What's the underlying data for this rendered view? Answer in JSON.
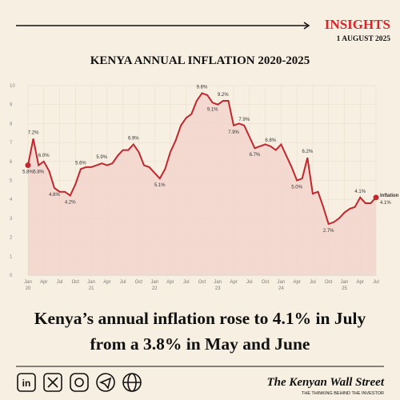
{
  "header": {
    "section": "INSIGHTS",
    "date": "1 AUGUST 2025"
  },
  "chart_data": {
    "type": "line",
    "title": "KENYA ANNUAL INFLATION 2020-2025",
    "x": [
      "Jan 20",
      null,
      null,
      "Apr",
      null,
      null,
      "Jul",
      null,
      null,
      "Oct",
      null,
      null,
      "Jan 21",
      null,
      null,
      "Apr",
      null,
      null,
      "Jul",
      null,
      null,
      "Oct",
      null,
      null,
      "Jan 22",
      null,
      null,
      "Apr",
      null,
      null,
      "Jul",
      null,
      null,
      "Oct",
      null,
      null,
      "Jan 23",
      null,
      null,
      "Apr",
      null,
      null,
      "Jul",
      null,
      null,
      "Oct",
      null,
      null,
      "Jan 24",
      null,
      null,
      "Apr",
      null,
      null,
      "Jul",
      null,
      null,
      "Oct",
      null,
      null,
      "Jan 25",
      null,
      null,
      "Apr",
      null,
      null,
      "Jul"
    ],
    "series": [
      {
        "name": "Inflation",
        "color": "#c0282d",
        "values": [
          5.8,
          7.2,
          5.8,
          6.0,
          5.5,
          4.6,
          4.4,
          4.4,
          4.2,
          4.8,
          5.6,
          5.7,
          5.7,
          5.8,
          5.9,
          5.8,
          5.9,
          6.3,
          6.6,
          6.6,
          6.9,
          6.5,
          5.8,
          5.7,
          5.4,
          5.1,
          5.6,
          6.5,
          7.1,
          7.9,
          8.3,
          8.5,
          9.2,
          9.6,
          9.5,
          9.1,
          9.0,
          9.2,
          9.2,
          7.9,
          8.0,
          7.9,
          7.3,
          6.7,
          6.8,
          6.9,
          6.8,
          6.6,
          6.9,
          6.3,
          5.7,
          5.0,
          5.1,
          6.2,
          4.3,
          4.4,
          3.6,
          2.7,
          2.8,
          3.0,
          3.3,
          3.5,
          3.6,
          4.1,
          3.8,
          3.8,
          4.1
        ],
        "value_labels": [
          "5.8%",
          "7.2%",
          "5.8%",
          "6.0%",
          null,
          "4.6%",
          null,
          null,
          "4.2%",
          null,
          "5.6%",
          null,
          null,
          null,
          "5.9%",
          null,
          null,
          null,
          null,
          null,
          "6.9%",
          null,
          null,
          null,
          null,
          "5.1%",
          null,
          null,
          null,
          null,
          null,
          null,
          null,
          "9.6%",
          null,
          "9.1%",
          null,
          "9.2%",
          null,
          "7.9%",
          null,
          "7.9%",
          null,
          "6.7%",
          null,
          null,
          "6.8%",
          null,
          null,
          null,
          null,
          "5.0%",
          null,
          "6.2%",
          null,
          null,
          null,
          "2.7%",
          null,
          null,
          null,
          null,
          null,
          "4.1%",
          null,
          null,
          "4.1%"
        ]
      }
    ],
    "ylim": [
      0,
      10
    ],
    "yticks": [
      0,
      1,
      2,
      3,
      4,
      5,
      6,
      7,
      8,
      9,
      10
    ],
    "grid": true,
    "area_color": "#f3d3cc"
  },
  "headline": [
    "Kenya’s annual inflation rose to 4.1% in July",
    "from a 3.8% in May and June"
  ],
  "footer": {
    "brand": "The Kenyan Wall Street",
    "tagline": "THE THINKING BEHIND THE INVESTOR"
  }
}
